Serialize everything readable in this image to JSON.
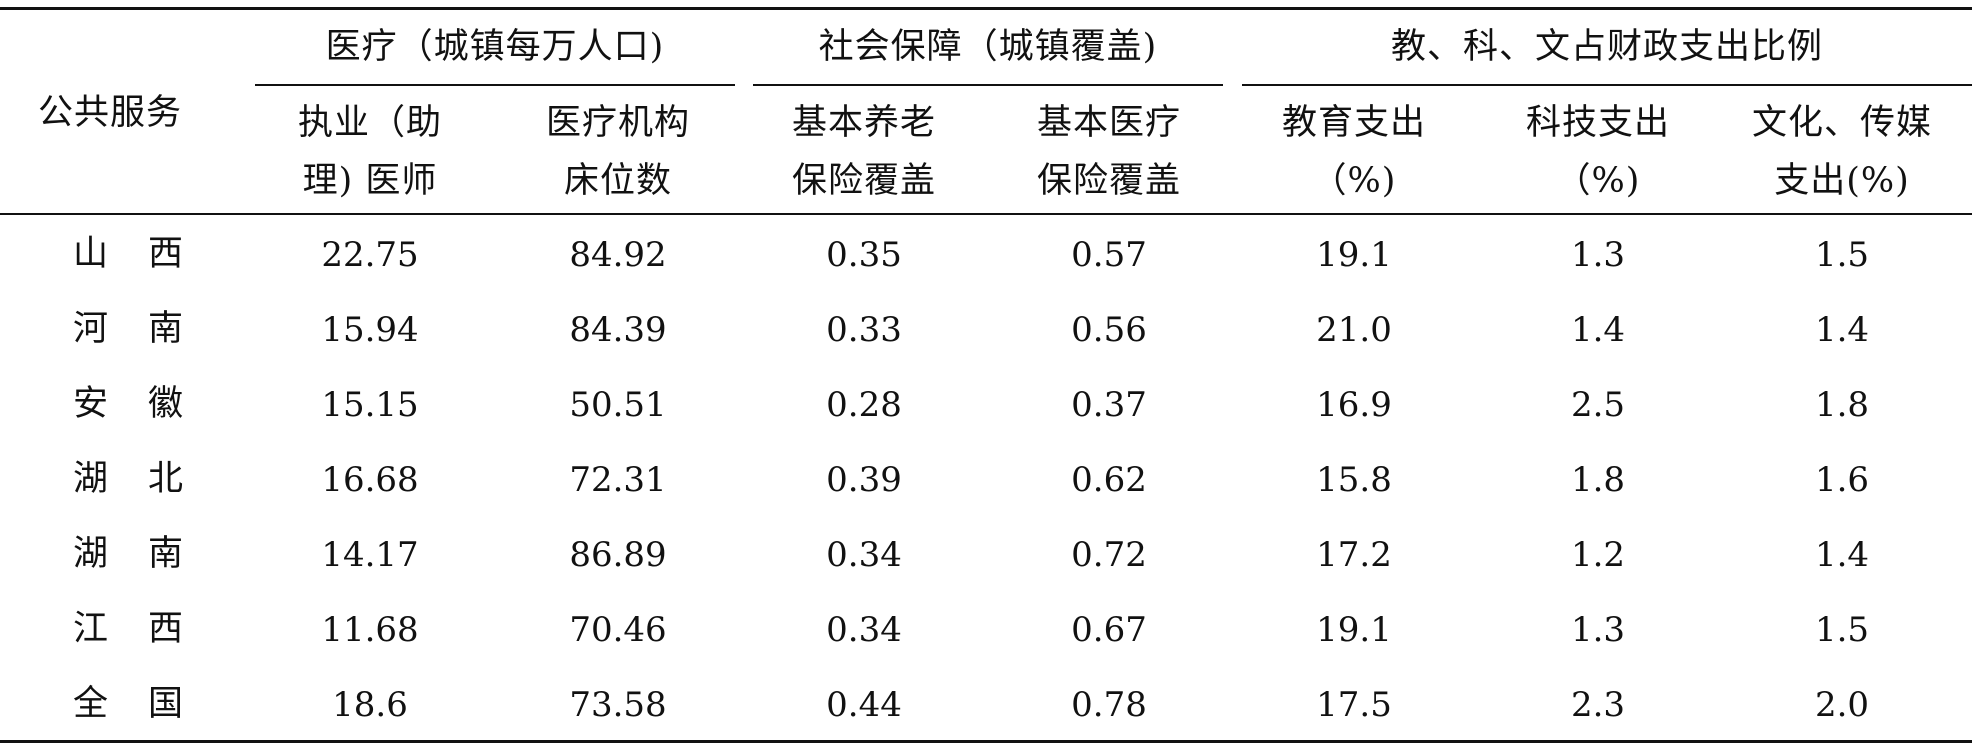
{
  "table": {
    "stub_header": "公共服务",
    "groups": [
      {
        "label": "医疗（城镇每万人口)"
      },
      {
        "label": "社会保障（城镇覆盖)"
      },
      {
        "label": "教、科、文占财政支出比例"
      }
    ],
    "columns": [
      {
        "line1": "执业（助",
        "line2": "理)  医师"
      },
      {
        "line1": "医疗机构",
        "line2": "床位数"
      },
      {
        "line1": "基本养老",
        "line2": "保险覆盖"
      },
      {
        "line1": "基本医疗",
        "line2": "保险覆盖"
      },
      {
        "line1": "教育支出",
        "line2": "（%)"
      },
      {
        "line1": "科技支出",
        "line2": "（%)"
      },
      {
        "line1": "文化、传媒",
        "line2": "支出(%)"
      }
    ],
    "rows": [
      {
        "region": "山西",
        "values": [
          "22.75",
          "84.92",
          "0.35",
          "0.57",
          "19.1",
          "1.3",
          "1.5"
        ]
      },
      {
        "region": "河南",
        "values": [
          "15.94",
          "84.39",
          "0.33",
          "0.56",
          "21.0",
          "1.4",
          "1.4"
        ]
      },
      {
        "region": "安徽",
        "values": [
          "15.15",
          "50.51",
          "0.28",
          "0.37",
          "16.9",
          "2.5",
          "1.8"
        ]
      },
      {
        "region": "湖北",
        "values": [
          "16.68",
          "72.31",
          "0.39",
          "0.62",
          "15.8",
          "1.8",
          "1.6"
        ]
      },
      {
        "region": "湖南",
        "values": [
          "14.17",
          "86.89",
          "0.34",
          "0.72",
          "17.2",
          "1.2",
          "1.4"
        ]
      },
      {
        "region": "江西",
        "values": [
          "11.68",
          "70.46",
          "0.34",
          "0.67",
          "19.1",
          "1.3",
          "1.5"
        ]
      },
      {
        "region": "全国",
        "values": [
          "18.6",
          "73.58",
          "0.44",
          "0.78",
          "17.5",
          "2.3",
          "2.0"
        ]
      }
    ]
  }
}
